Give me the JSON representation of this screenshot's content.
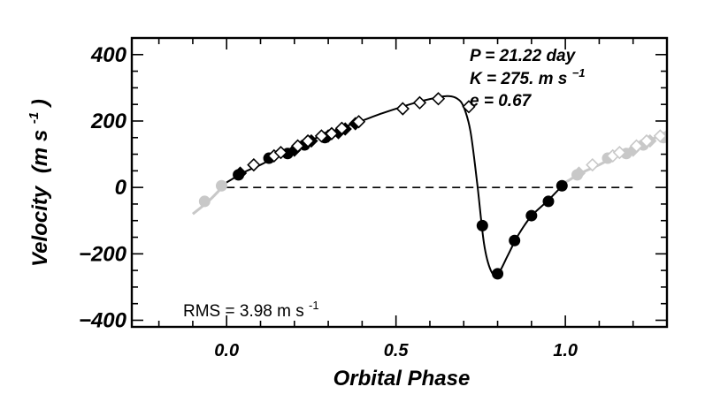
{
  "chart_data": {
    "type": "scatter",
    "title": "",
    "xlabel": "Orbital Phase",
    "ylabel": "Velocity",
    "ylabel_units_base": "(m s",
    "ylabel_units_exp": "-1",
    "ylabel_units_close": ")",
    "xlim": [
      -0.28,
      1.3
    ],
    "ylim": [
      -420,
      450
    ],
    "x_ticks": [
      {
        "value": 0.0,
        "label": "0.0"
      },
      {
        "value": 0.5,
        "label": "0.5"
      },
      {
        "value": 1.0,
        "label": "1.0"
      }
    ],
    "y_ticks": [
      {
        "value": 400,
        "label": "400"
      },
      {
        "value": 200,
        "label": "200"
      },
      {
        "value": 0,
        "label": "0"
      },
      {
        "value": -200,
        "label": "−200"
      },
      {
        "value": -400,
        "label": "−400"
      }
    ],
    "x_minor_step": 0.1,
    "y_minor_step": 50,
    "zero_line": {
      "x_start": 0.0,
      "x_end": 1.2,
      "style": "dashed"
    },
    "annotations": {
      "period": "P = 21.22 day",
      "semi_amplitude_base": "K = 275. m s",
      "semi_amplitude_exp": "−1",
      "eccentricity": "e = 0.67",
      "rms_base": "RMS = 3.98 m s",
      "rms_exp": "-1"
    },
    "model_curve": {
      "color": "#000000",
      "points": [
        [
          0.0,
          15
        ],
        [
          0.05,
          45
        ],
        [
          0.1,
          68
        ],
        [
          0.15,
          95
        ],
        [
          0.2,
          120
        ],
        [
          0.25,
          143
        ],
        [
          0.3,
          163
        ],
        [
          0.35,
          183
        ],
        [
          0.4,
          201
        ],
        [
          0.45,
          220
        ],
        [
          0.5,
          237
        ],
        [
          0.55,
          253
        ],
        [
          0.6,
          266
        ],
        [
          0.65,
          275
        ],
        [
          0.68,
          268
        ],
        [
          0.7,
          242
        ],
        [
          0.72,
          168
        ],
        [
          0.74,
          10
        ],
        [
          0.76,
          -170
        ],
        [
          0.78,
          -250
        ],
        [
          0.8,
          -262
        ],
        [
          0.83,
          -205
        ],
        [
          0.86,
          -145
        ],
        [
          0.9,
          -86
        ],
        [
          0.95,
          -38
        ],
        [
          1.0,
          15
        ]
      ]
    },
    "extended_curve": {
      "color": "#c8c8c8",
      "segments": [
        [
          [
            -0.1,
            -80
          ],
          [
            -0.05,
            -38
          ],
          [
            0.0,
            15
          ]
        ],
        [
          [
            1.0,
            15
          ],
          [
            1.05,
            45
          ],
          [
            1.1,
            68
          ],
          [
            1.15,
            95
          ],
          [
            1.2,
            120
          ],
          [
            1.25,
            143
          ],
          [
            1.3,
            163
          ]
        ]
      ]
    },
    "series": [
      {
        "name": "",
        "marker": "circle-filled",
        "color": "#000000",
        "points": [
          [
            0.035,
            38
          ],
          [
            0.125,
            88
          ],
          [
            0.18,
            102
          ],
          [
            0.23,
            128
          ],
          [
            0.29,
            150
          ],
          [
            0.755,
            -115
          ],
          [
            0.8,
            -260
          ],
          [
            0.85,
            -160
          ],
          [
            0.9,
            -85
          ],
          [
            0.95,
            -42
          ],
          [
            0.99,
            5
          ]
        ]
      },
      {
        "name": "",
        "marker": "diamond-filled",
        "color": "#000000",
        "points": [
          [
            0.04,
            43
          ],
          [
            0.2,
            112
          ],
          [
            0.25,
            140
          ],
          [
            0.3,
            155
          ],
          [
            0.33,
            165
          ],
          [
            0.35,
            176
          ],
          [
            0.38,
            192
          ]
        ]
      },
      {
        "name": "",
        "marker": "diamond-open",
        "color": "#000000",
        "points": [
          [
            0.08,
            68
          ],
          [
            0.14,
            95
          ],
          [
            0.16,
            105
          ],
          [
            0.21,
            125
          ],
          [
            0.24,
            140
          ],
          [
            0.28,
            155
          ],
          [
            0.31,
            162
          ],
          [
            0.34,
            178
          ],
          [
            0.39,
            198
          ],
          [
            0.52,
            237
          ],
          [
            0.57,
            255
          ],
          [
            0.625,
            267
          ],
          [
            0.715,
            243
          ]
        ]
      },
      {
        "name": "",
        "marker": "circle-filled",
        "color": "#c8c8c8",
        "points": [
          [
            -0.065,
            -42
          ],
          [
            -0.015,
            5
          ],
          [
            1.035,
            38
          ],
          [
            1.125,
            88
          ],
          [
            1.18,
            102
          ],
          [
            1.23,
            128
          ],
          [
            1.29,
            150
          ]
        ]
      },
      {
        "name": "",
        "marker": "diamond-filled",
        "color": "#c8c8c8",
        "points": [
          [
            1.04,
            43
          ],
          [
            1.2,
            112
          ],
          [
            1.25,
            140
          ],
          [
            1.3,
            155
          ]
        ]
      },
      {
        "name": "",
        "marker": "diamond-open",
        "color": "#c8c8c8",
        "points": [
          [
            1.08,
            68
          ],
          [
            1.14,
            95
          ],
          [
            1.16,
            105
          ],
          [
            1.21,
            125
          ],
          [
            1.24,
            140
          ],
          [
            1.28,
            155
          ]
        ]
      }
    ]
  }
}
